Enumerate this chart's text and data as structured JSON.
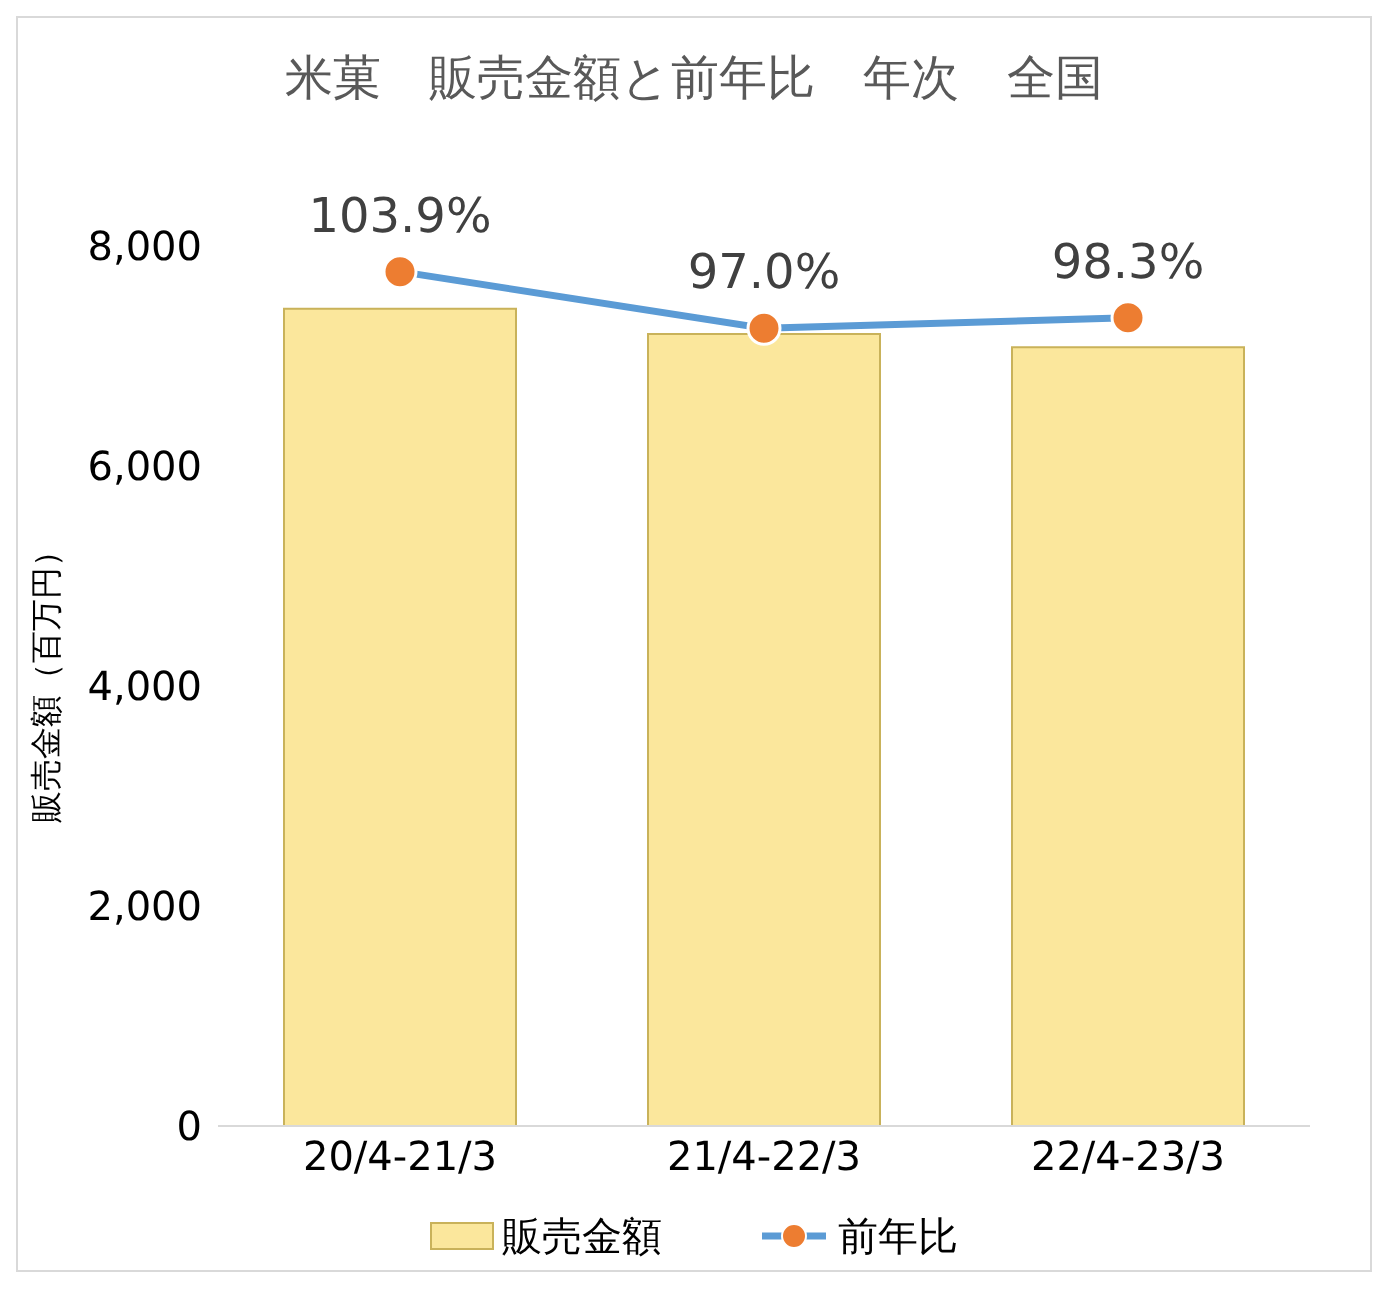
{
  "chart_data": {
    "type": "bar",
    "title": "米菓　販売金額と前年比　年次　全国",
    "ylabel": "販売金額（百万円）",
    "categories": [
      "20/4-21/3",
      "21/4-22/3",
      "22/4-23/3"
    ],
    "series": [
      {
        "name": "販売金額",
        "color": "#fbe79c",
        "values": [
          7430,
          7200,
          7080
        ]
      },
      {
        "name": "前年比",
        "type": "line",
        "axis": "y2",
        "color": "#5b9bd5",
        "values": [
          103.9,
          97.0,
          98.3
        ],
        "value_labels": [
          "103.9%",
          "97.0%",
          "98.3%"
        ]
      }
    ],
    "ylim": [
      0,
      8000
    ],
    "yticks": [
      {
        "value": 0,
        "label": "0"
      },
      {
        "value": 2000,
        "label": "2,000"
      },
      {
        "value": 4000,
        "label": "4,000"
      },
      {
        "value": 6000,
        "label": "6,000"
      },
      {
        "value": 8000,
        "label": "8,000"
      }
    ],
    "legend": "bottom",
    "marker": "circle"
  }
}
